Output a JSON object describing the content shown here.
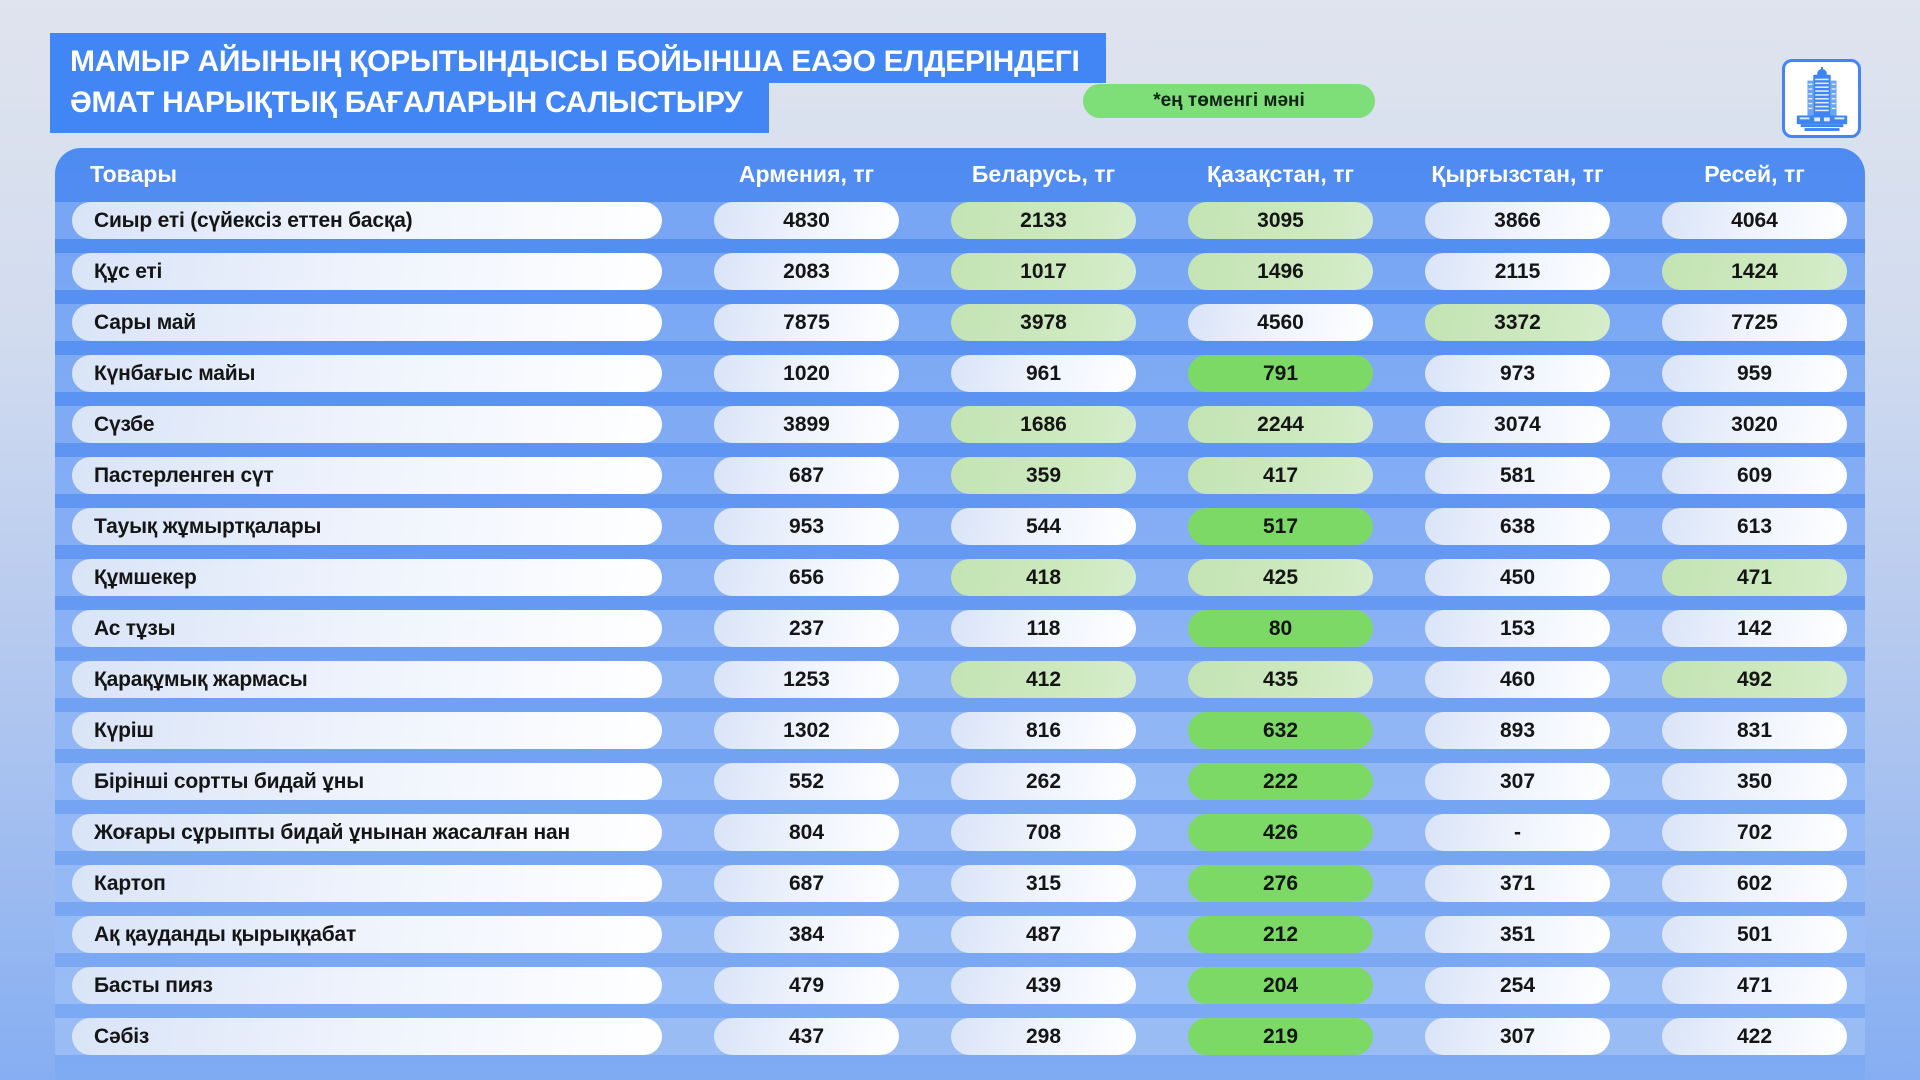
{
  "title": {
    "line1": "МАМЫР АЙЫНЫҢ ҚОРЫТЫНДЫСЫ БОЙЫНША ЕАЭО ЕЛДЕРІНДЕГІ",
    "line2": "ӘМАТ НАРЫҚТЫҚ БАҒАЛАРЫН САЛЫСТЫРУ"
  },
  "legend": {
    "label": "*ең төменгі мәні"
  },
  "logo": {
    "icon": "bank-building-icon"
  },
  "colors": {
    "banner_blue": "#4285f4",
    "panel_blue_top": "#4e8bf1",
    "panel_blue_bottom": "#7fabf3",
    "row_band": "rgba(255,255,255,0.22)",
    "pill_white": "#edf2fc",
    "lowest_light_green": "#cde9bf",
    "lowest_bright_green": "#7cd966",
    "legend_green": "#7ede78"
  },
  "chart_data": {
    "type": "table",
    "title": "МАМЫР АЙЫНЫҢ ҚОРЫТЫНДЫСЫ БОЙЫНША ЕАЭО ЕЛДЕРІНДЕГІ ӘМАТ НАРЫҚТЫҚ БАҒАЛАРЫН САЛЫСТЫРУ",
    "legend_note": "*ең төменгі мәні",
    "columns": [
      "Товары",
      "Армения, тг",
      "Беларусь, тг",
      "Қазақстан, тг",
      "Қырғызстан, тг",
      "Ресей, тг"
    ],
    "highlight_legend": {
      "light": "low value (pale green)",
      "bright": "lowest value (bright green)",
      "none": "plain"
    },
    "rows": [
      {
        "product": "Сиыр еті (сүйексіз еттен басқа)",
        "values": [
          "4830",
          "2133",
          "3095",
          "3866",
          "4064"
        ],
        "highlight": [
          "none",
          "light",
          "light",
          "none",
          "none"
        ]
      },
      {
        "product": "Құс еті",
        "values": [
          "2083",
          "1017",
          "1496",
          "2115",
          "1424"
        ],
        "highlight": [
          "none",
          "light",
          "light",
          "none",
          "light"
        ]
      },
      {
        "product": "Сары май",
        "values": [
          "7875",
          "3978",
          "4560",
          "3372",
          "7725"
        ],
        "highlight": [
          "none",
          "light",
          "none",
          "light",
          "none"
        ]
      },
      {
        "product": "Күнбағыс майы",
        "values": [
          "1020",
          "961",
          "791",
          "973",
          "959"
        ],
        "highlight": [
          "none",
          "none",
          "bright",
          "none",
          "none"
        ]
      },
      {
        "product": "Сүзбе",
        "values": [
          "3899",
          "1686",
          "2244",
          "3074",
          "3020"
        ],
        "highlight": [
          "none",
          "light",
          "light",
          "none",
          "none"
        ]
      },
      {
        "product": "Пастерленген сүт",
        "values": [
          "687",
          "359",
          "417",
          "581",
          "609"
        ],
        "highlight": [
          "none",
          "light",
          "light",
          "none",
          "none"
        ]
      },
      {
        "product": "Тауық жұмыртқалары",
        "values": [
          "953",
          "544",
          "517",
          "638",
          "613"
        ],
        "highlight": [
          "none",
          "none",
          "bright",
          "none",
          "none"
        ]
      },
      {
        "product": "Құмшекер",
        "values": [
          "656",
          "418",
          "425",
          "450",
          "471"
        ],
        "highlight": [
          "none",
          "light",
          "light",
          "none",
          "light"
        ]
      },
      {
        "product": "Ас тұзы",
        "values": [
          "237",
          "118",
          "80",
          "153",
          "142"
        ],
        "highlight": [
          "none",
          "none",
          "bright",
          "none",
          "none"
        ]
      },
      {
        "product": "Қарақұмық жармасы",
        "values": [
          "1253",
          "412",
          "435",
          "460",
          "492"
        ],
        "highlight": [
          "none",
          "light",
          "light",
          "none",
          "light"
        ]
      },
      {
        "product": "Күріш",
        "values": [
          "1302",
          "816",
          "632",
          "893",
          "831"
        ],
        "highlight": [
          "none",
          "none",
          "bright",
          "none",
          "none"
        ]
      },
      {
        "product": "Бірінші сортты бидай ұны",
        "values": [
          "552",
          "262",
          "222",
          "307",
          "350"
        ],
        "highlight": [
          "none",
          "none",
          "bright",
          "none",
          "none"
        ]
      },
      {
        "product": "Жоғары сұрыпты бидай ұнынан жасалған нан",
        "values": [
          "804",
          "708",
          "426",
          "-",
          "702"
        ],
        "highlight": [
          "none",
          "none",
          "bright",
          "none",
          "none"
        ]
      },
      {
        "product": "Картоп",
        "values": [
          "687",
          "315",
          "276",
          "371",
          "602"
        ],
        "highlight": [
          "none",
          "none",
          "bright",
          "none",
          "none"
        ]
      },
      {
        "product": "Ақ қауданды қырыққабат",
        "values": [
          "384",
          "487",
          "212",
          "351",
          "501"
        ],
        "highlight": [
          "none",
          "none",
          "bright",
          "none",
          "none"
        ]
      },
      {
        "product": "Басты пияз",
        "values": [
          "479",
          "439",
          "204",
          "254",
          "471"
        ],
        "highlight": [
          "none",
          "none",
          "bright",
          "none",
          "none"
        ]
      },
      {
        "product": "Сәбіз",
        "values": [
          "437",
          "298",
          "219",
          "307",
          "422"
        ],
        "highlight": [
          "none",
          "none",
          "bright",
          "none",
          "none"
        ]
      }
    ]
  }
}
